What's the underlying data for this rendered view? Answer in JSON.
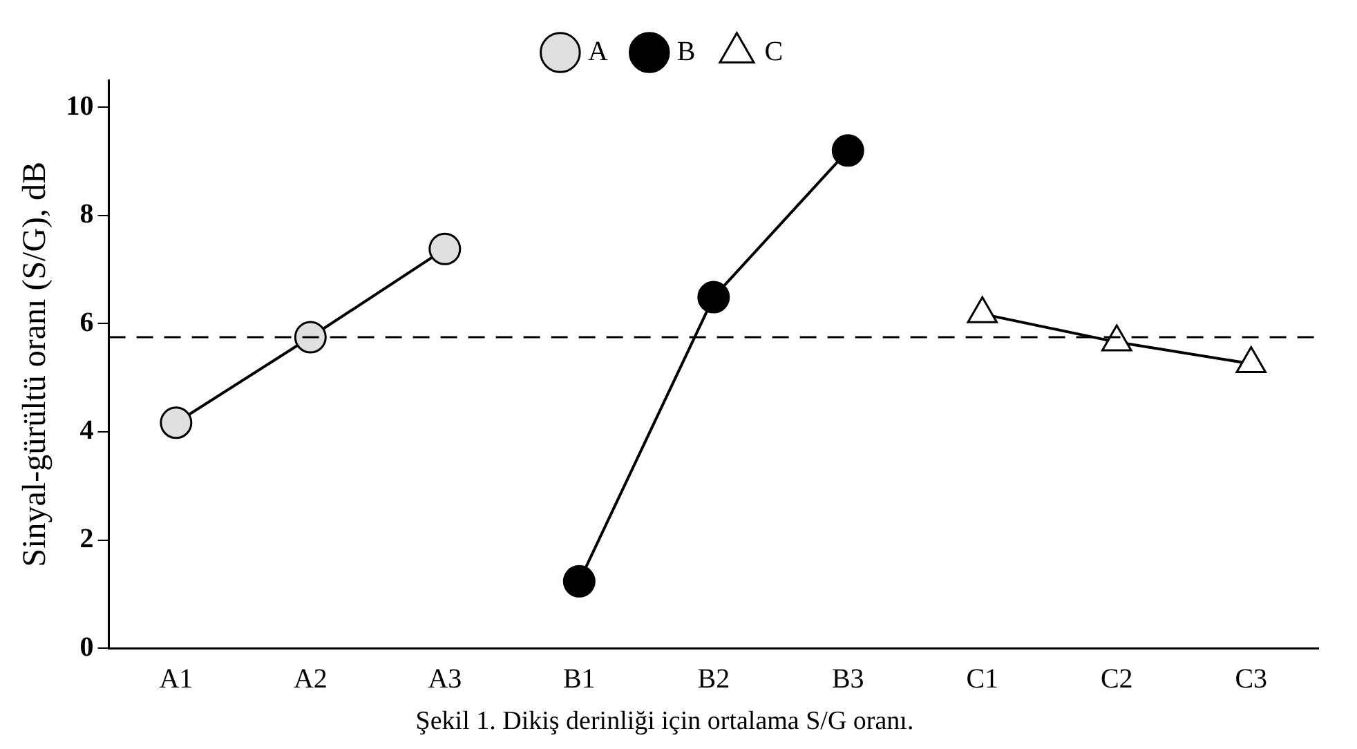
{
  "chart_data": {
    "type": "line",
    "title": "Şekil 1. Dikiş derinliği için ortalama S/G oranı.",
    "ylabel": "Sinyal-gürültü oranı (S/G), dB",
    "categories": [
      "A1",
      "A2",
      "A3",
      "B1",
      "B2",
      "B3",
      "C1",
      "C2",
      "C3"
    ],
    "series": [
      {
        "name": "A",
        "color": "#e0e0e0",
        "marker": "circle",
        "values": [
          4.17,
          5.75,
          7.38,
          null,
          null,
          null,
          null,
          null,
          null
        ]
      },
      {
        "name": "B",
        "color": "#000000",
        "marker": "circle",
        "values": [
          null,
          null,
          null,
          1.24,
          6.49,
          9.2,
          null,
          null,
          null
        ]
      },
      {
        "name": "C",
        "color": "#ffffff",
        "marker": "triangle",
        "values": [
          null,
          null,
          null,
          null,
          null,
          null,
          6.18,
          5.66,
          5.26
        ]
      }
    ],
    "ylim": [
      0,
      10.5
    ],
    "yticks": [
      0,
      2,
      4,
      6,
      8,
      10
    ],
    "grid": false,
    "legend": "top",
    "ref_lines": [
      {
        "axis": "y",
        "value": 5.75,
        "line_style": "dashed",
        "color": "#000000"
      }
    ]
  }
}
